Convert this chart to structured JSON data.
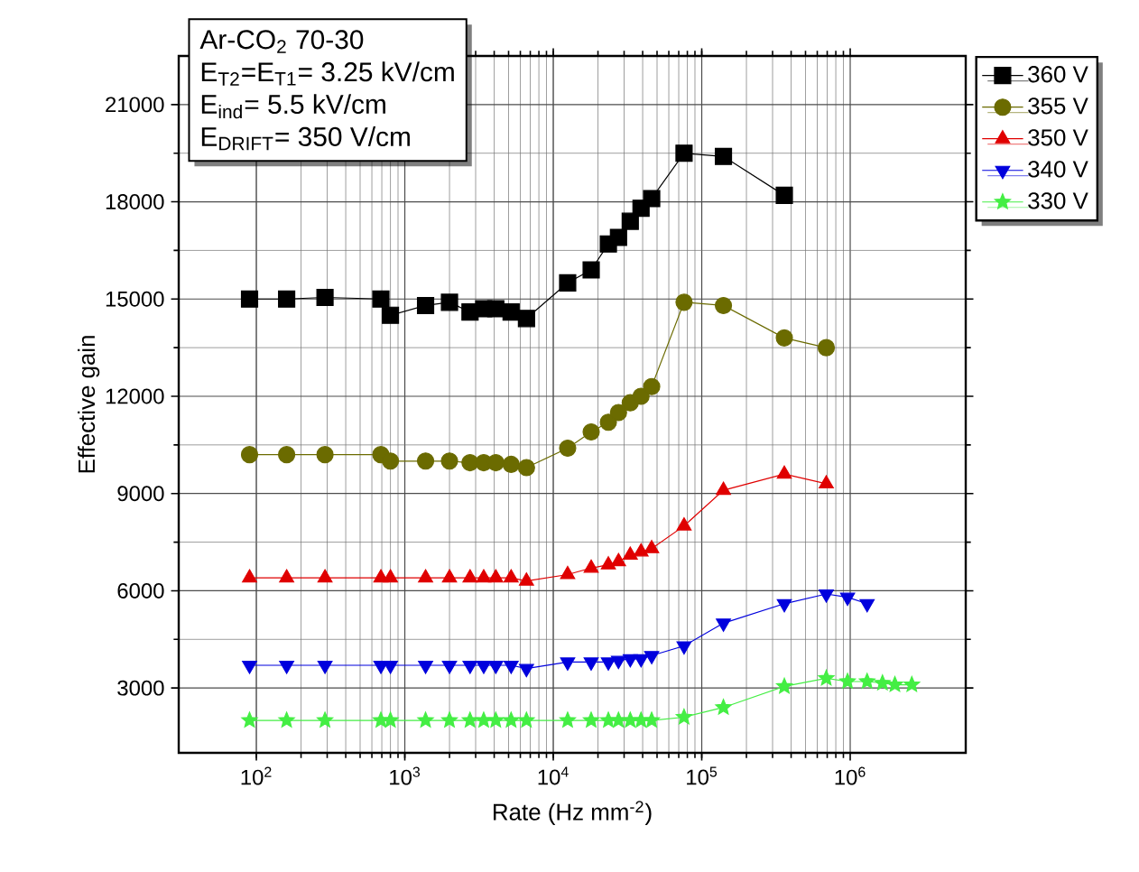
{
  "chart_data": {
    "type": "line",
    "xlabel": "Rate (Hz mm$^{-2}$)",
    "ylabel": "Effective gain",
    "log": "x",
    "grid": true,
    "legend": "top right",
    "xlim": [
      30,
      6000000
    ],
    "ylim": [
      1000,
      22500
    ],
    "xticks": [
      {
        "value": 100,
        "label": "10$^{2}$"
      },
      {
        "value": 1000,
        "label": "10$^{3}$"
      },
      {
        "value": 10000,
        "label": "10$^{4}$"
      },
      {
        "value": 100000,
        "label": "10$^{5}$"
      },
      {
        "value": 1000000,
        "label": "10$^{6}$"
      }
    ],
    "yticks": [
      3000,
      6000,
      9000,
      12000,
      15000,
      18000,
      21000
    ],
    "annotations": [
      "Ar-CO$_{2}$ 70-30",
      "E$_{T2}$=E$_{T1}$= 3.25 kV/cm",
      "E$_{ind}$= 5.5 kV/cm",
      "E$_{DRIFT}$= 350 V/cm"
    ],
    "series": [
      {
        "name": "360 V",
        "color": "#000000",
        "marker": "square",
        "x": [
          90,
          160,
          290,
          690,
          800,
          1380,
          2000,
          2750,
          3400,
          4100,
          5200,
          6600,
          12500,
          18000,
          23500,
          27500,
          33000,
          39000,
          46000,
          76000,
          140000,
          360000
        ],
        "values": [
          15000,
          15000,
          15050,
          15000,
          14500,
          14800,
          14900,
          14600,
          14700,
          14700,
          14600,
          14400,
          15500,
          15900,
          16700,
          16900,
          17400,
          17800,
          18100,
          19500,
          19400,
          18200
        ]
      },
      {
        "name": "355 V",
        "color": "#6b6b00",
        "marker": "circle",
        "x": [
          90,
          160,
          290,
          690,
          800,
          1380,
          2000,
          2750,
          3400,
          4100,
          5200,
          6600,
          12500,
          18000,
          23500,
          27500,
          33000,
          39000,
          46000,
          76000,
          140000,
          360000,
          690000
        ],
        "values": [
          10200,
          10200,
          10200,
          10200,
          10000,
          10000,
          10000,
          9950,
          9950,
          9950,
          9900,
          9800,
          10400,
          10900,
          11200,
          11500,
          11800,
          12000,
          12300,
          14900,
          14800,
          13800,
          13500
        ]
      },
      {
        "name": "350 V",
        "color": "#e00000",
        "marker": "triangle",
        "x": [
          90,
          160,
          290,
          690,
          800,
          1380,
          2000,
          2750,
          3400,
          4100,
          5200,
          6600,
          12500,
          18000,
          23500,
          27500,
          33000,
          39000,
          46000,
          76000,
          140000,
          360000,
          690000
        ],
        "values": [
          6400,
          6400,
          6400,
          6400,
          6400,
          6400,
          6400,
          6400,
          6400,
          6400,
          6400,
          6300,
          6500,
          6700,
          6800,
          6900,
          7100,
          7200,
          7300,
          8000,
          9100,
          9600,
          9300
        ]
      },
      {
        "name": "340 V",
        "color": "#0000dd",
        "marker": "triangle down",
        "x": [
          90,
          160,
          290,
          690,
          800,
          1380,
          2000,
          2750,
          3400,
          4100,
          5200,
          6600,
          12500,
          18000,
          23500,
          27500,
          33000,
          39000,
          46000,
          76000,
          140000,
          360000,
          690000,
          960000,
          1300000
        ],
        "values": [
          3700,
          3700,
          3700,
          3700,
          3700,
          3700,
          3700,
          3700,
          3700,
          3700,
          3700,
          3600,
          3800,
          3800,
          3800,
          3850,
          3900,
          3900,
          4000,
          4300,
          5000,
          5600,
          5900,
          5800,
          5600
        ]
      },
      {
        "name": "330 V",
        "color": "#44ee44",
        "marker": "star",
        "x": [
          90,
          160,
          290,
          690,
          800,
          1380,
          2000,
          2750,
          3400,
          4100,
          5200,
          6600,
          12500,
          18000,
          23500,
          27500,
          33000,
          39000,
          46000,
          76000,
          140000,
          360000,
          690000,
          960000,
          1300000,
          1650000,
          2000000,
          2600000
        ],
        "values": [
          2000,
          2000,
          2000,
          2000,
          2000,
          2000,
          2000,
          2000,
          2000,
          2000,
          2000,
          2000,
          2000,
          2000,
          2000,
          2000,
          2000,
          2000,
          2000,
          2100,
          2400,
          3050,
          3300,
          3200,
          3200,
          3150,
          3100,
          3100
        ]
      }
    ]
  }
}
